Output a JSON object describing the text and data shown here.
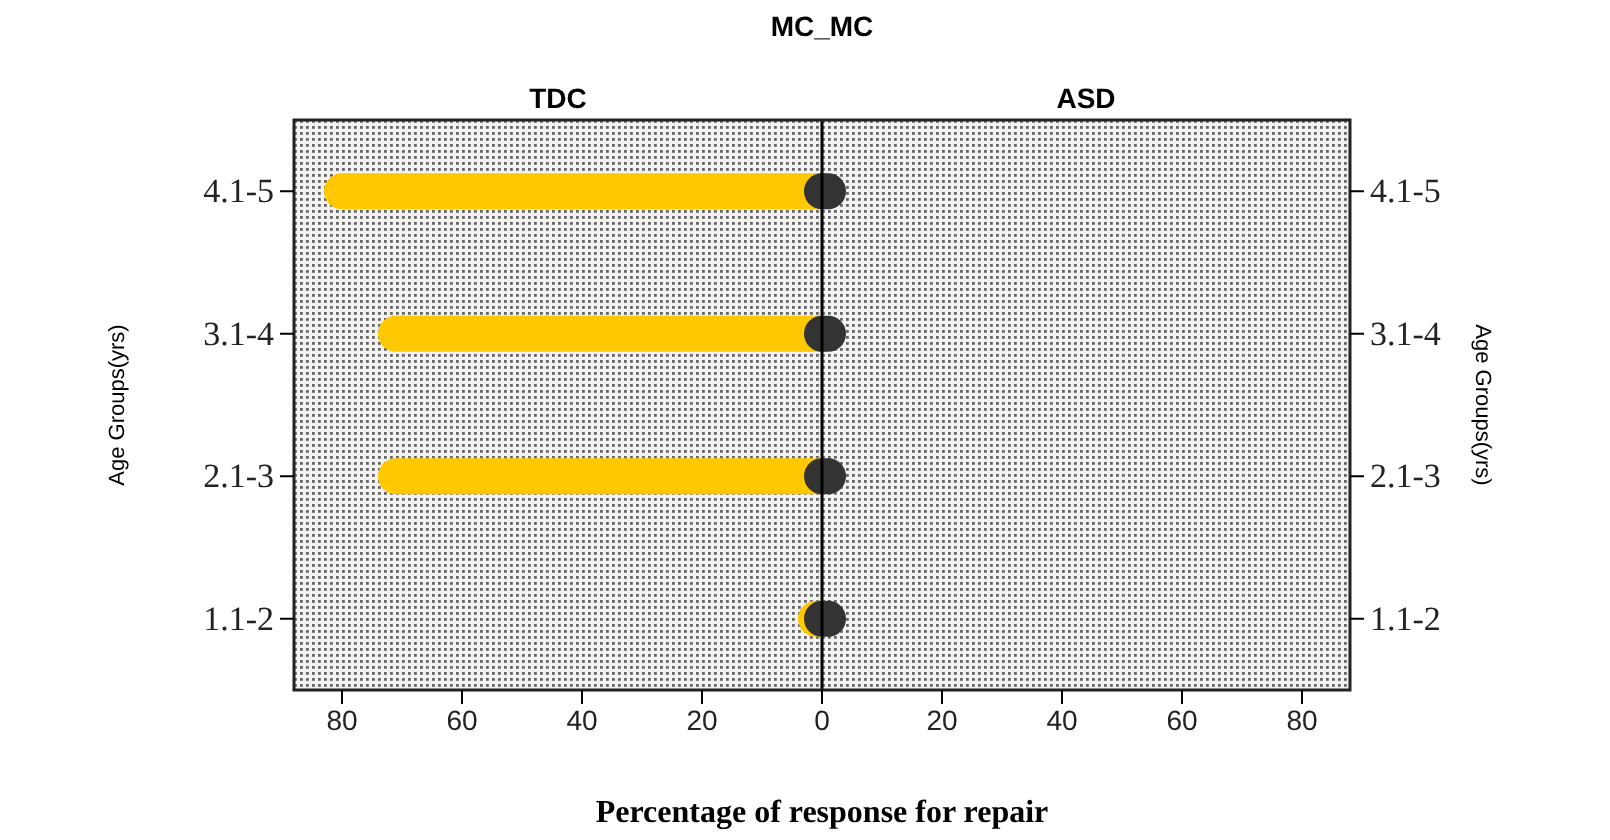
{
  "chart_data": {
    "type": "bar",
    "orientation": "horizontal",
    "title": "MC_MC",
    "xlabel": "Percentage of response for repair",
    "ylabel": "Age Groups(yrs)",
    "categories": [
      "4.1-5",
      "3.1-4",
      "2.1-3",
      "1.1-2"
    ],
    "series": [
      {
        "color": "#ffc800",
        "values": [
          -80,
          -71,
          -71,
          -1
        ]
      },
      {
        "color": "#333333",
        "values": [
          1,
          1,
          1,
          1
        ]
      }
    ],
    "xlim": [
      -88,
      88
    ],
    "xticks": [
      {
        "value": -80,
        "label": "80"
      },
      {
        "value": -60,
        "label": "60"
      },
      {
        "value": -40,
        "label": "40"
      },
      {
        "value": -20,
        "label": "20"
      },
      0,
      20,
      40,
      60,
      80
    ],
    "ref_lines": [
      {
        "axis": "x",
        "value": 0,
        "color": "#000000"
      }
    ],
    "annotations": [
      "TDC",
      "ASD",
      "Age Groups(yrs)"
    ],
    "grid": false
  }
}
